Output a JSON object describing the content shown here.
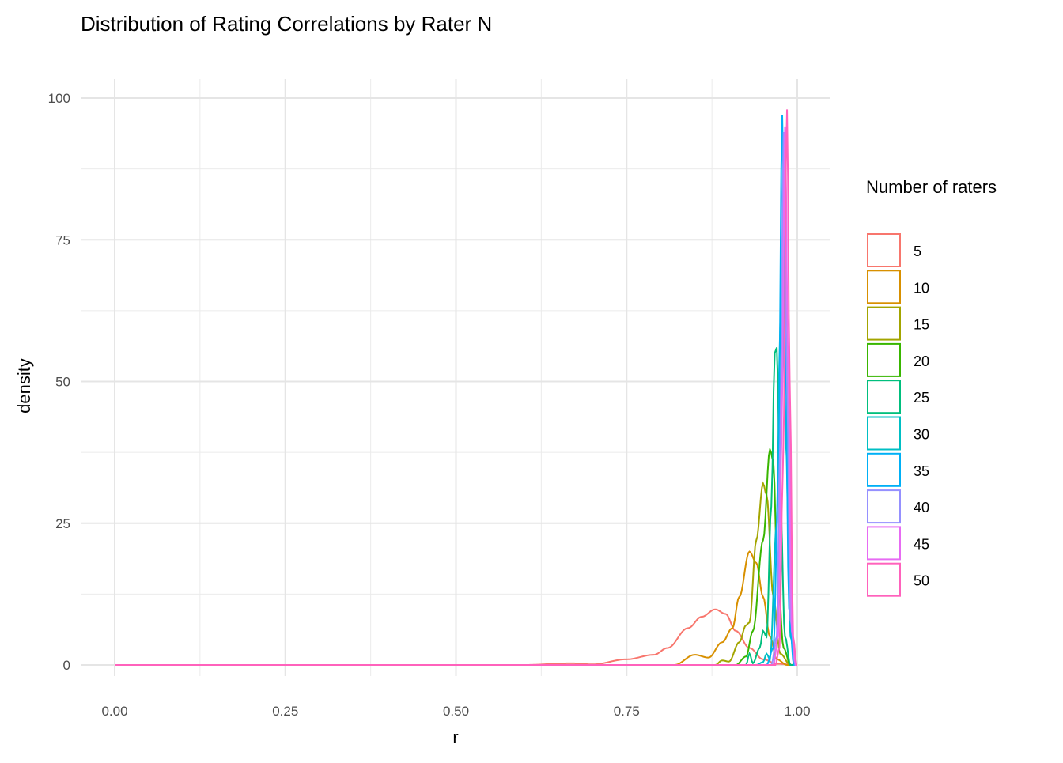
{
  "chart_data": {
    "type": "line",
    "title": "Distribution of Rating Correlations by Rater N",
    "xlabel": "r",
    "ylabel": "density",
    "xlim": [
      0,
      1
    ],
    "ylim": [
      0,
      100
    ],
    "x_ticks": [
      "0.00",
      "0.25",
      "0.50",
      "0.75",
      "1.00"
    ],
    "x_tick_values": [
      0,
      0.25,
      0.5,
      0.75,
      1
    ],
    "y_ticks": [
      "0",
      "25",
      "50",
      "75",
      "100"
    ],
    "y_tick_values": [
      0,
      25,
      50,
      75,
      100
    ],
    "grid": true,
    "legend_title": "Number of raters",
    "legend_position": "right",
    "series": [
      {
        "name": "5",
        "color": "#F8766D",
        "points": [
          [
            0,
            0
          ],
          [
            0.6,
            0
          ],
          [
            0.67,
            0.3
          ],
          [
            0.7,
            0.1
          ],
          [
            0.75,
            1
          ],
          [
            0.79,
            1.8
          ],
          [
            0.81,
            3
          ],
          [
            0.84,
            6.5
          ],
          [
            0.86,
            8.5
          ],
          [
            0.88,
            9.8
          ],
          [
            0.895,
            9
          ],
          [
            0.91,
            6
          ],
          [
            0.93,
            3
          ],
          [
            0.95,
            1
          ],
          [
            0.97,
            0.2
          ],
          [
            1,
            0
          ]
        ]
      },
      {
        "name": "10",
        "color": "#D89000",
        "points": [
          [
            0,
            0
          ],
          [
            0.82,
            0
          ],
          [
            0.85,
            1.8
          ],
          [
            0.87,
            1.3
          ],
          [
            0.89,
            4
          ],
          [
            0.905,
            6.5
          ],
          [
            0.915,
            12
          ],
          [
            0.93,
            20
          ],
          [
            0.94,
            18
          ],
          [
            0.95,
            12
          ],
          [
            0.96,
            5
          ],
          [
            0.97,
            1
          ],
          [
            0.985,
            0
          ],
          [
            1,
            0
          ]
        ]
      },
      {
        "name": "15",
        "color": "#A3A500",
        "points": [
          [
            0,
            0
          ],
          [
            0.88,
            0
          ],
          [
            0.89,
            0.8
          ],
          [
            0.9,
            0.6
          ],
          [
            0.915,
            4
          ],
          [
            0.925,
            7
          ],
          [
            0.93,
            7.5
          ],
          [
            0.94,
            22
          ],
          [
            0.95,
            32
          ],
          [
            0.955,
            30
          ],
          [
            0.965,
            12
          ],
          [
            0.975,
            2
          ],
          [
            0.99,
            0
          ],
          [
            1,
            0
          ]
        ]
      },
      {
        "name": "20",
        "color": "#39B600",
        "points": [
          [
            0,
            0
          ],
          [
            0.91,
            0
          ],
          [
            0.925,
            1.5
          ],
          [
            0.935,
            6
          ],
          [
            0.95,
            22
          ],
          [
            0.96,
            38
          ],
          [
            0.965,
            36
          ],
          [
            0.97,
            20
          ],
          [
            0.98,
            3
          ],
          [
            0.99,
            0
          ],
          [
            1,
            0
          ]
        ]
      },
      {
        "name": "25",
        "color": "#00BF7D",
        "points": [
          [
            0,
            0
          ],
          [
            0.925,
            0
          ],
          [
            0.93,
            2
          ],
          [
            0.935,
            0.3
          ],
          [
            0.945,
            3
          ],
          [
            0.95,
            6
          ],
          [
            0.955,
            5
          ],
          [
            0.962,
            28
          ],
          [
            0.967,
            55
          ],
          [
            0.97,
            56
          ],
          [
            0.975,
            30
          ],
          [
            0.982,
            5
          ],
          [
            0.99,
            0
          ],
          [
            1,
            0
          ]
        ]
      },
      {
        "name": "30",
        "color": "#00BFC4",
        "points": [
          [
            0,
            0
          ],
          [
            0.94,
            0
          ],
          [
            0.95,
            0.5
          ],
          [
            0.955,
            2
          ],
          [
            0.96,
            1
          ],
          [
            0.97,
            25
          ],
          [
            0.975,
            60
          ],
          [
            0.978,
            72
          ],
          [
            0.983,
            40
          ],
          [
            0.99,
            5
          ],
          [
            0.997,
            0
          ],
          [
            1,
            0
          ]
        ]
      },
      {
        "name": "35",
        "color": "#00B0F6",
        "points": [
          [
            0,
            0
          ],
          [
            0.955,
            0
          ],
          [
            0.965,
            3
          ],
          [
            0.972,
            30
          ],
          [
            0.978,
            97
          ],
          [
            0.982,
            60
          ],
          [
            0.988,
            10
          ],
          [
            0.995,
            0
          ],
          [
            1,
            0
          ]
        ]
      },
      {
        "name": "40",
        "color": "#9590FF",
        "points": [
          [
            0,
            0
          ],
          [
            0.962,
            0
          ],
          [
            0.97,
            5
          ],
          [
            0.975,
            40
          ],
          [
            0.98,
            94
          ],
          [
            0.985,
            50
          ],
          [
            0.99,
            8
          ],
          [
            0.997,
            0
          ],
          [
            1,
            0
          ]
        ]
      },
      {
        "name": "45",
        "color": "#E76BF3",
        "points": [
          [
            0,
            0
          ],
          [
            0.965,
            0
          ],
          [
            0.972,
            5
          ],
          [
            0.977,
            40
          ],
          [
            0.982,
            95
          ],
          [
            0.987,
            50
          ],
          [
            0.992,
            6
          ],
          [
            0.998,
            0
          ],
          [
            1,
            0
          ]
        ]
      },
      {
        "name": "50",
        "color": "#FF62BC",
        "points": [
          [
            0,
            0
          ],
          [
            0.968,
            0
          ],
          [
            0.974,
            3
          ],
          [
            0.979,
            35
          ],
          [
            0.985,
            98
          ],
          [
            0.989,
            50
          ],
          [
            0.994,
            5
          ],
          [
            0.999,
            0
          ],
          [
            1,
            0
          ]
        ]
      }
    ]
  }
}
